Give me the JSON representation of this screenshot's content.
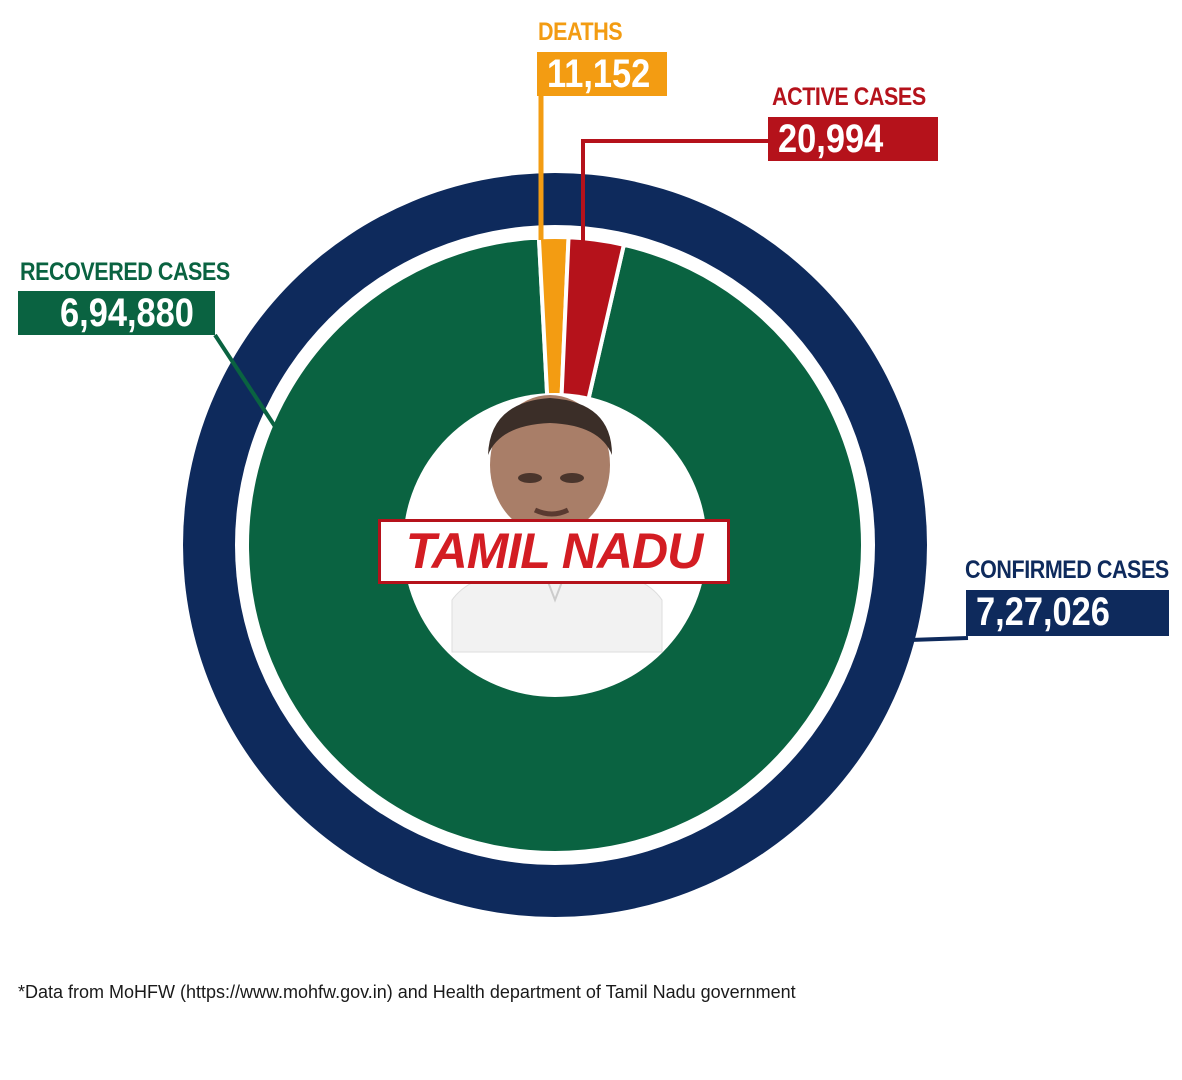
{
  "chart_data": {
    "type": "pie",
    "title": "",
    "center_label": "TAMIL NADU",
    "outer_ring": {
      "name": "CONFIRMED CASES",
      "value_label": "7,27,026",
      "value": 727026,
      "color": "#0e2a5c"
    },
    "slices": [
      {
        "name": "RECOVERED CASES",
        "value_label": "6,94,880",
        "value": 694880,
        "color": "#0a6341"
      },
      {
        "name": "DEATHS",
        "value_label": "11,152",
        "value": 11152,
        "color": "#f39c12"
      },
      {
        "name": "ACTIVE CASES",
        "value_label": "20,994",
        "value": 20994,
        "color": "#b5121b"
      }
    ]
  },
  "footnote": "*Data from MoHFW (https://www.mohfw.gov.in) and Health department of Tamil Nadu government",
  "icons": {
    "center_image": "person-portrait-icon"
  }
}
